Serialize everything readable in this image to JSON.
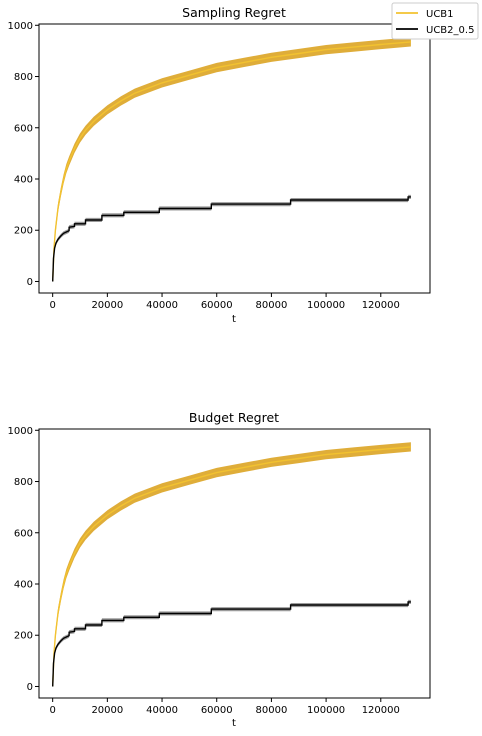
{
  "legend": {
    "placement": "top-right",
    "entries": [
      {
        "label": "UCB1",
        "color": "#f2c230"
      },
      {
        "label": "UCB2_0.5",
        "color": "#000000"
      }
    ]
  },
  "chart_data": [
    {
      "type": "line",
      "title": "Sampling Regret",
      "xlabel": "t",
      "ylabel": "",
      "xlim": [
        -5000,
        138000
      ],
      "ylim": [
        -45,
        1005
      ],
      "xticks": [
        0,
        20000,
        40000,
        60000,
        80000,
        100000,
        120000
      ],
      "yticks": [
        0,
        200,
        400,
        600,
        800,
        1000
      ],
      "grid": false,
      "series": [
        {
          "name": "UCB1",
          "color": "#f2c230",
          "band_color": "#d99f16",
          "x": [
            0,
            500,
            1000,
            2000,
            3000,
            4000,
            5000,
            6000,
            8000,
            10000,
            12000,
            15000,
            20000,
            25000,
            30000,
            40000,
            50000,
            60000,
            70000,
            80000,
            90000,
            100000,
            110000,
            120000,
            131000
          ],
          "y": [
            0,
            130,
            200,
            290,
            350,
            400,
            440,
            470,
            520,
            560,
            590,
            625,
            670,
            705,
            735,
            775,
            805,
            835,
            855,
            875,
            890,
            905,
            915,
            925,
            935
          ],
          "band": 18
        },
        {
          "name": "UCB2_0.5",
          "color": "#000000",
          "band_color": "#8a8a8a",
          "x": [
            0,
            300,
            700,
            1200,
            2000,
            3000,
            4000,
            5000,
            6000,
            6000,
            8000,
            8000,
            12000,
            12000,
            18000,
            18000,
            26000,
            26000,
            39000,
            39000,
            58000,
            58000,
            87000,
            87000,
            130000,
            130000,
            131000
          ],
          "y": [
            0,
            90,
            130,
            150,
            165,
            178,
            188,
            193,
            198,
            212,
            215,
            225,
            225,
            240,
            240,
            258,
            258,
            270,
            270,
            285,
            285,
            302,
            302,
            318,
            318,
            330,
            330
          ],
          "band": 8
        }
      ]
    },
    {
      "type": "line",
      "title": "Budget Regret",
      "xlabel": "t",
      "ylabel": "",
      "xlim": [
        -5000,
        138000
      ],
      "ylim": [
        -45,
        1005
      ],
      "xticks": [
        0,
        20000,
        40000,
        60000,
        80000,
        100000,
        120000
      ],
      "yticks": [
        0,
        200,
        400,
        600,
        800,
        1000
      ],
      "grid": false,
      "series": [
        {
          "name": "UCB1",
          "color": "#f2c230",
          "band_color": "#d99f16",
          "x": [
            0,
            500,
            1000,
            2000,
            3000,
            4000,
            5000,
            6000,
            8000,
            10000,
            12000,
            15000,
            20000,
            25000,
            30000,
            40000,
            50000,
            60000,
            70000,
            80000,
            90000,
            100000,
            110000,
            120000,
            131000
          ],
          "y": [
            0,
            130,
            200,
            290,
            350,
            400,
            440,
            470,
            520,
            560,
            590,
            625,
            670,
            705,
            735,
            775,
            805,
            835,
            855,
            875,
            890,
            905,
            915,
            925,
            935
          ],
          "band": 18
        },
        {
          "name": "UCB2_0.5",
          "color": "#000000",
          "band_color": "#8a8a8a",
          "x": [
            0,
            300,
            700,
            1200,
            2000,
            3000,
            4000,
            5000,
            6000,
            6000,
            8000,
            8000,
            12000,
            12000,
            18000,
            18000,
            26000,
            26000,
            39000,
            39000,
            58000,
            58000,
            87000,
            87000,
            130000,
            130000,
            131000
          ],
          "y": [
            0,
            90,
            130,
            150,
            165,
            178,
            188,
            193,
            198,
            212,
            215,
            225,
            225,
            240,
            240,
            258,
            258,
            270,
            270,
            285,
            285,
            302,
            302,
            318,
            318,
            330,
            330
          ],
          "band": 8
        }
      ]
    }
  ]
}
